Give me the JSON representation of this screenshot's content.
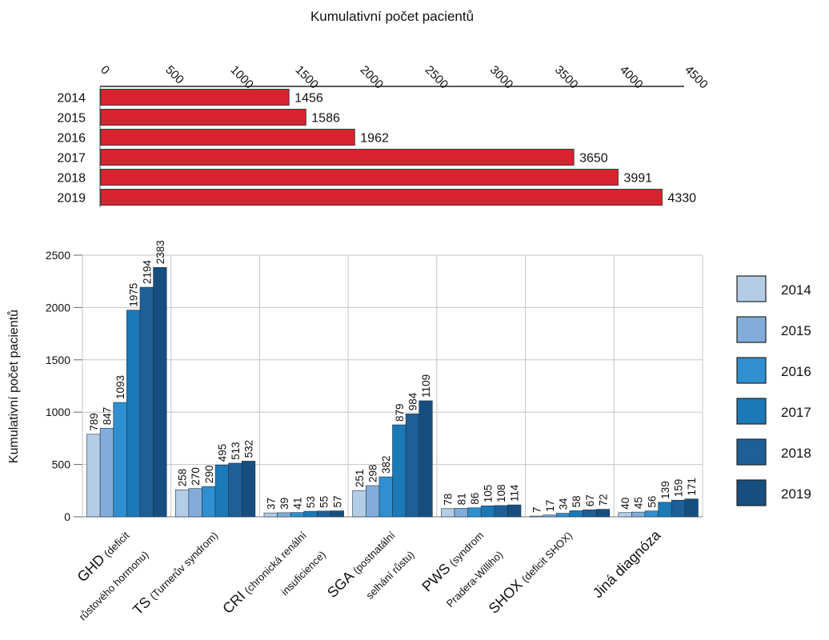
{
  "chart_data": [
    {
      "type": "bar",
      "orientation": "horizontal",
      "xlabel": "Kumulativní počet pacientů",
      "xlim": [
        0,
        4500
      ],
      "xticks": [
        "0",
        "500",
        "1000",
        "1500",
        "2000",
        "2500",
        "3000",
        "3500",
        "4000",
        "4500"
      ],
      "categories": [
        "2014",
        "2015",
        "2016",
        "2017",
        "2018",
        "2019"
      ],
      "values": [
        1456,
        1586,
        1962,
        3650,
        3991,
        4330
      ],
      "data_labels": [
        "1456",
        "1586",
        "1962",
        "3650",
        "3991",
        "4330"
      ],
      "color": "#d9232e"
    },
    {
      "type": "bar",
      "orientation": "vertical",
      "ylabel": "Kumulativní počet pacientů",
      "ylim": [
        0,
        2500
      ],
      "yticks": [
        "0",
        "500",
        "1000",
        "1500",
        "2000",
        "2500"
      ],
      "grid": true,
      "legend_position": "right",
      "categories": [
        {
          "main": "GHD",
          "detail1": "(deficit",
          "detail2": "růstového hormonu)"
        },
        {
          "main": "TS",
          "detail1": "(Turnerův syndrom)",
          "detail2": ""
        },
        {
          "main": "CRI",
          "detail1": "(chronická renální",
          "detail2": "insuficience)"
        },
        {
          "main": "SGA",
          "detail1": "(postnatální",
          "detail2": "selhání růstu)"
        },
        {
          "main": "PWS",
          "detail1": "(syndrom",
          "detail2": "Pradera-Williho)"
        },
        {
          "main": "SHOX",
          "detail1": "(deficit SHOX)",
          "detail2": ""
        },
        {
          "main": "Jiná diagnóza",
          "detail1": "",
          "detail2": ""
        }
      ],
      "series": [
        {
          "name": "2014",
          "color": "#b4cde6",
          "values": [
            789,
            258,
            37,
            251,
            78,
            7,
            40
          ]
        },
        {
          "name": "2015",
          "color": "#82acd9",
          "values": [
            847,
            270,
            39,
            298,
            81,
            17,
            45
          ]
        },
        {
          "name": "2016",
          "color": "#2f8fd0",
          "values": [
            1093,
            290,
            41,
            382,
            86,
            34,
            56
          ]
        },
        {
          "name": "2017",
          "color": "#1b79b8",
          "values": [
            1975,
            495,
            53,
            879,
            105,
            58,
            139
          ]
        },
        {
          "name": "2018",
          "color": "#1e5f98",
          "values": [
            2194,
            513,
            55,
            984,
            108,
            67,
            159
          ]
        },
        {
          "name": "2019",
          "color": "#164f7f",
          "values": [
            2383,
            532,
            57,
            1109,
            114,
            72,
            171
          ]
        }
      ]
    }
  ]
}
